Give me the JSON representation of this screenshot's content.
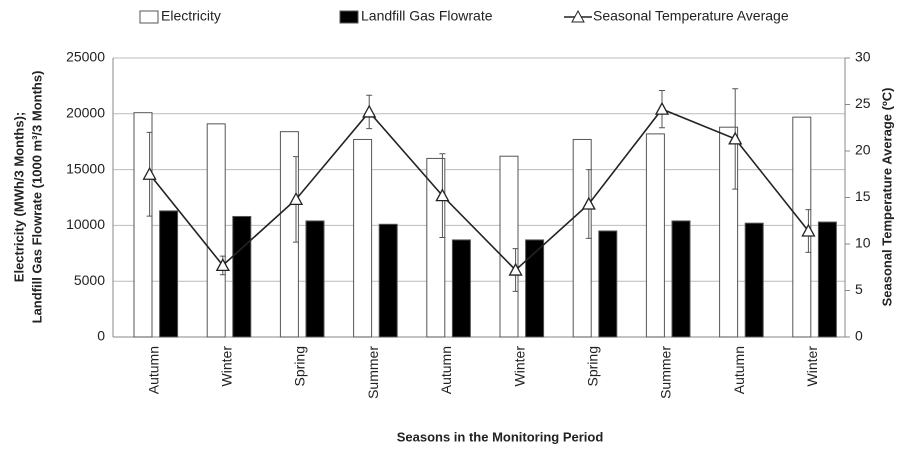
{
  "chart_data": {
    "type": "bar-line",
    "categories": [
      "Autumn",
      "Winter",
      "Spring",
      "Summer",
      "Autumn",
      "Winter",
      "Spring",
      "Summer",
      "Autumn",
      "Winter"
    ],
    "series": [
      {
        "name": "Electricity",
        "type": "bar",
        "color": "#ffffff",
        "values": [
          20100,
          19100,
          18400,
          17700,
          16000,
          16200,
          17700,
          18200,
          18800,
          19700
        ]
      },
      {
        "name": "Landfill Gas Flowrate",
        "type": "bar",
        "color": "#000000",
        "values": [
          11300,
          10800,
          10400,
          10100,
          8700,
          8700,
          9500,
          10400,
          10200,
          10300
        ]
      },
      {
        "name": "Seasonal Temperature Average",
        "type": "line",
        "axis": "y2",
        "color": "#222222",
        "values": [
          17.5,
          7.7,
          14.8,
          24.2,
          15.2,
          7.2,
          14.3,
          24.5,
          21.3,
          11.4
        ],
        "errors": [
          4.5,
          1.0,
          4.6,
          1.8,
          4.5,
          2.3,
          3.7,
          2.0,
          5.4,
          2.3
        ]
      }
    ],
    "ylim": [
      0,
      25000
    ],
    "yticks": [
      0,
      5000,
      10000,
      15000,
      20000,
      25000
    ],
    "y2lim": [
      0,
      30
    ],
    "y2ticks": [
      0,
      5,
      10,
      15,
      20,
      25,
      30
    ],
    "ylabel": [
      "Electricity (MWh/3 Months);",
      "Landfill Gas Flowrate (1000 m³/3 Months)"
    ],
    "y2label": "Seasonal Temperature Average (ºC)",
    "xlabel": "Seasons in the Monitoring Period",
    "grid": true
  }
}
